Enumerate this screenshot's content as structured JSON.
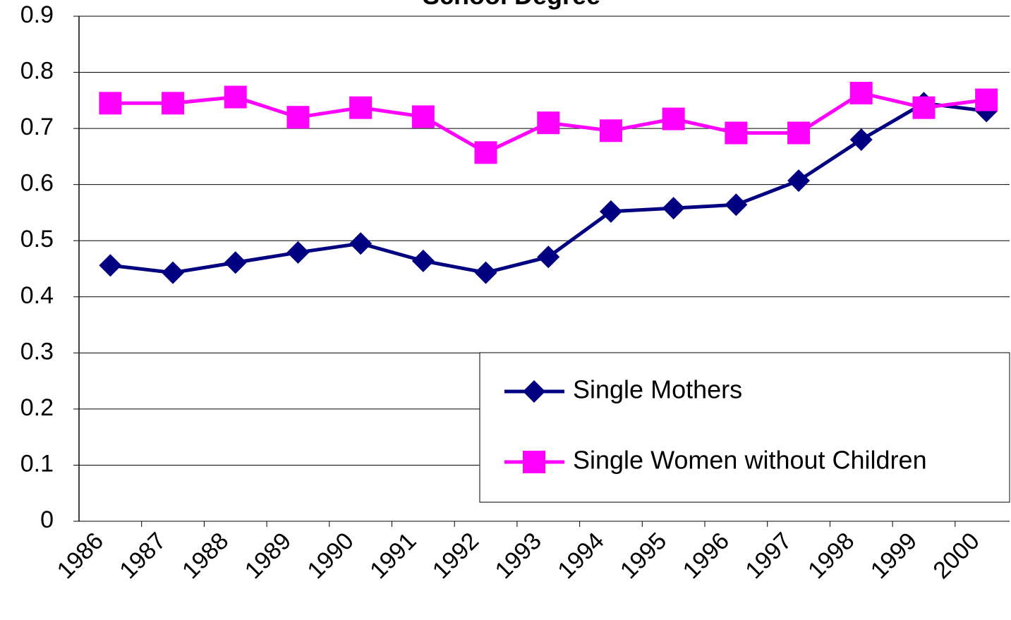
{
  "chart_data": {
    "type": "line",
    "title": "School Degree",
    "categories": [
      "1986",
      "1987",
      "1988",
      "1989",
      "1990",
      "1991",
      "1992",
      "1993",
      "1994",
      "1995",
      "1996",
      "1997",
      "1998",
      "1999",
      "2000"
    ],
    "series": [
      {
        "name": "Single Mothers",
        "color": "#000080",
        "marker": "diamond",
        "values": [
          0.456,
          0.443,
          0.461,
          0.479,
          0.495,
          0.464,
          0.443,
          0.471,
          0.552,
          0.558,
          0.564,
          0.607,
          0.68,
          0.745,
          0.731
        ]
      },
      {
        "name": "Single Women without Children",
        "color": "#ff00ff",
        "marker": "square",
        "values": [
          0.745,
          0.745,
          0.756,
          0.72,
          0.737,
          0.721,
          0.657,
          0.71,
          0.696,
          0.717,
          0.692,
          0.692,
          0.763,
          0.737,
          0.751
        ]
      }
    ],
    "ylim": [
      0,
      0.9
    ],
    "yticks": [
      0,
      0.1,
      0.2,
      0.3,
      0.4,
      0.5,
      0.6,
      0.7,
      0.8,
      0.9
    ],
    "grid": true
  }
}
